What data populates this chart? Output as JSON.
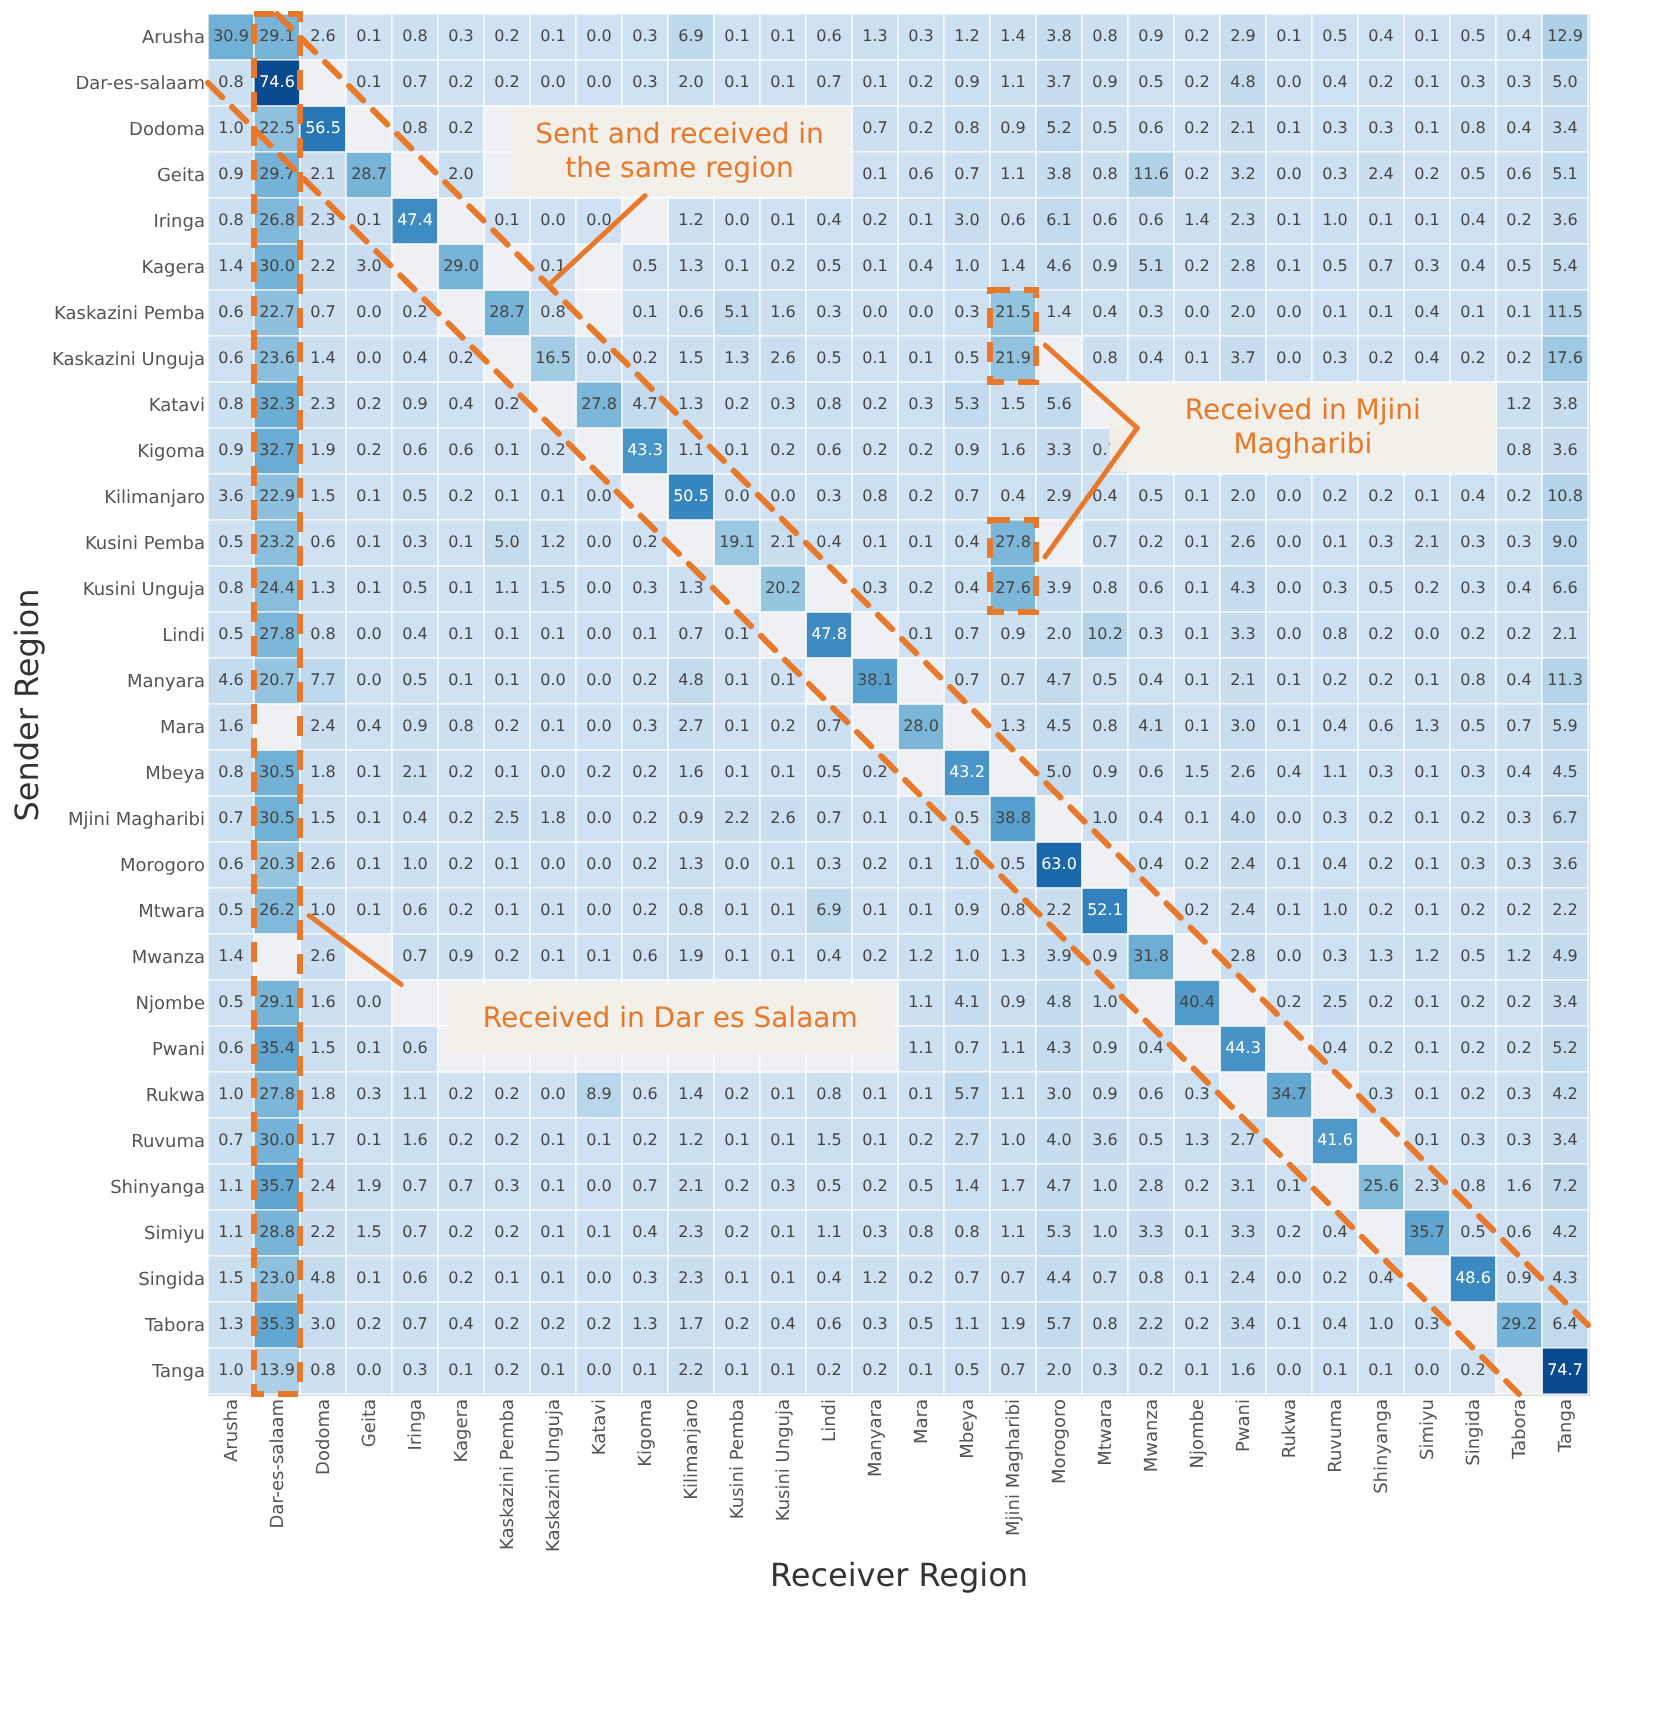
{
  "chart_data": {
    "type": "heatmap",
    "xlabel": "Receiver Region",
    "ylabel": "Sender Region",
    "data_labels": true,
    "categories": [
      "Arusha",
      "Dar-es-salaam",
      "Dodoma",
      "Geita",
      "Iringa",
      "Kagera",
      "Kaskazini Pemba",
      "Kaskazini Unguja",
      "Katavi",
      "Kigoma",
      "Kilimanjaro",
      "Kusini Pemba",
      "Kusini Unguja",
      "Lindi",
      "Manyara",
      "Mara",
      "Mbeya",
      "Mjini Magharibi",
      "Morogoro",
      "Mtwara",
      "Mwanza",
      "Njombe",
      "Pwani",
      "Rukwa",
      "Ruvuma",
      "Shinyanga",
      "Simiyu",
      "Singida",
      "Tabora",
      "Tanga"
    ],
    "y_categories": [
      "Arusha",
      "Dar-es-salaam",
      "Dodoma",
      "Geita",
      "Iringa",
      "Kagera",
      "Kaskazini Pemba",
      "Kaskazini Unguja",
      "Katavi",
      "Kigoma",
      "Kilimanjaro",
      "Kusini Pemba",
      "Kusini Unguja",
      "Lindi",
      "Manyara",
      "Mara",
      "Mbeya",
      "Mjini Magharibi",
      "Morogoro",
      "Mtwara",
      "Mwanza",
      "Njombe",
      "Pwani",
      "Rukwa",
      "Ruvuma",
      "Shinyanga",
      "Simiyu",
      "Singida",
      "Tabora",
      "Tanga"
    ],
    "cells": [
      [
        30.9,
        29.1,
        2.6,
        0.1,
        0.8,
        0.3,
        0.2,
        0.1,
        0.0,
        0.3,
        6.9,
        0.1,
        0.1,
        0.6,
        1.3,
        0.3,
        1.2,
        1.4,
        3.8,
        0.8,
        0.9,
        0.2,
        2.9,
        0.1,
        0.5,
        0.4,
        0.1,
        0.5,
        0.4,
        12.9
      ],
      [
        0.8,
        74.6,
        null,
        0.1,
        0.7,
        0.2,
        0.2,
        0.0,
        0.0,
        0.3,
        2.0,
        0.1,
        0.1,
        0.7,
        0.1,
        0.2,
        0.9,
        1.1,
        3.7,
        0.9,
        0.5,
        0.2,
        4.8,
        0.0,
        0.4,
        0.2,
        0.1,
        0.3,
        0.3,
        5.0
      ],
      [
        1.0,
        22.5,
        56.5,
        null,
        0.8,
        0.2,
        null,
        null,
        null,
        null,
        null,
        null,
        null,
        null,
        0.7,
        0.2,
        0.8,
        0.9,
        5.2,
        0.5,
        0.6,
        0.2,
        2.1,
        0.1,
        0.3,
        0.3,
        0.1,
        0.8,
        0.4,
        3.4
      ],
      [
        0.9,
        29.7,
        2.1,
        28.7,
        null,
        2.0,
        null,
        null,
        null,
        null,
        null,
        null,
        null,
        null,
        0.1,
        0.6,
        0.7,
        1.1,
        3.8,
        0.8,
        11.6,
        0.2,
        3.2,
        0.0,
        0.3,
        2.4,
        0.2,
        0.5,
        0.6,
        5.1
      ],
      [
        0.8,
        26.8,
        2.3,
        0.1,
        47.4,
        null,
        0.1,
        0.0,
        0.0,
        null,
        1.2,
        0.0,
        0.1,
        0.4,
        0.2,
        0.1,
        3.0,
        0.6,
        6.1,
        0.6,
        0.6,
        1.4,
        2.3,
        0.1,
        1.0,
        0.1,
        0.1,
        0.4,
        0.2,
        3.6
      ],
      [
        1.4,
        30.0,
        2.2,
        3.0,
        null,
        29.0,
        null,
        0.1,
        null,
        0.5,
        1.3,
        0.1,
        0.2,
        0.5,
        0.1,
        0.4,
        1.0,
        1.4,
        4.6,
        0.9,
        5.1,
        0.2,
        2.8,
        0.1,
        0.5,
        0.7,
        0.3,
        0.4,
        0.5,
        5.4
      ],
      [
        0.6,
        22.7,
        0.7,
        0.0,
        0.2,
        null,
        28.7,
        0.8,
        null,
        0.1,
        0.6,
        5.1,
        1.6,
        0.3,
        0.0,
        0.0,
        0.3,
        21.5,
        1.4,
        0.4,
        0.3,
        0.0,
        2.0,
        0.0,
        0.1,
        0.1,
        0.4,
        0.1,
        0.1,
        11.5
      ],
      [
        0.6,
        23.6,
        1.4,
        0.0,
        0.4,
        0.2,
        null,
        16.5,
        0.0,
        0.2,
        1.5,
        1.3,
        2.6,
        0.5,
        0.1,
        0.1,
        0.5,
        21.9,
        null,
        0.8,
        0.4,
        0.1,
        3.7,
        0.0,
        0.3,
        0.2,
        0.4,
        0.2,
        0.2,
        17.6
      ],
      [
        0.8,
        32.3,
        2.3,
        0.2,
        0.9,
        0.4,
        0.2,
        null,
        27.8,
        4.7,
        1.3,
        0.2,
        0.3,
        0.8,
        0.2,
        0.3,
        5.3,
        1.5,
        5.6,
        null,
        null,
        null,
        null,
        null,
        null,
        null,
        null,
        null,
        1.2,
        3.8
      ],
      [
        0.9,
        32.7,
        1.9,
        0.2,
        0.6,
        0.6,
        0.1,
        0.2,
        null,
        43.3,
        1.1,
        0.1,
        0.2,
        0.6,
        0.2,
        0.2,
        0.9,
        1.6,
        3.3,
        0.7,
        null,
        null,
        null,
        null,
        null,
        null,
        null,
        null,
        0.8,
        3.6
      ],
      [
        3.6,
        22.9,
        1.5,
        0.1,
        0.5,
        0.2,
        0.1,
        0.1,
        0.0,
        null,
        50.5,
        0.0,
        0.0,
        0.3,
        0.8,
        0.2,
        0.7,
        0.4,
        2.9,
        0.4,
        0.5,
        0.1,
        2.0,
        0.0,
        0.2,
        0.2,
        0.1,
        0.4,
        0.2,
        10.8
      ],
      [
        0.5,
        23.2,
        0.6,
        0.1,
        0.3,
        0.1,
        5.0,
        1.2,
        0.0,
        0.2,
        null,
        19.1,
        2.1,
        0.4,
        0.1,
        0.1,
        0.4,
        27.8,
        null,
        0.7,
        0.2,
        0.1,
        2.6,
        0.0,
        0.1,
        0.3,
        2.1,
        0.3,
        0.3,
        9.0
      ],
      [
        0.8,
        24.4,
        1.3,
        0.1,
        0.5,
        0.1,
        1.1,
        1.5,
        0.0,
        0.3,
        1.3,
        null,
        20.2,
        null,
        0.3,
        0.2,
        0.4,
        27.6,
        3.9,
        0.8,
        0.6,
        0.1,
        4.3,
        0.0,
        0.3,
        0.5,
        0.2,
        0.3,
        0.4,
        6.6
      ],
      [
        0.5,
        27.8,
        0.8,
        0.0,
        0.4,
        0.1,
        0.1,
        0.1,
        0.0,
        0.1,
        0.7,
        0.1,
        null,
        47.8,
        null,
        0.1,
        0.7,
        0.9,
        2.0,
        10.2,
        0.3,
        0.1,
        3.3,
        0.0,
        0.8,
        0.2,
        0.0,
        0.2,
        0.2,
        2.1
      ],
      [
        4.6,
        20.7,
        7.7,
        0.0,
        0.5,
        0.1,
        0.1,
        0.0,
        0.0,
        0.2,
        4.8,
        0.1,
        0.1,
        null,
        38.1,
        null,
        0.7,
        0.7,
        4.7,
        0.5,
        0.4,
        0.1,
        2.1,
        0.1,
        0.2,
        0.2,
        0.1,
        0.8,
        0.4,
        11.3
      ],
      [
        1.6,
        null,
        2.4,
        0.4,
        0.9,
        0.8,
        0.2,
        0.1,
        0.0,
        0.3,
        2.7,
        0.1,
        0.2,
        0.7,
        null,
        28.0,
        null,
        1.3,
        4.5,
        0.8,
        4.1,
        0.1,
        3.0,
        0.1,
        0.4,
        0.6,
        1.3,
        0.5,
        0.7,
        5.9
      ],
      [
        0.8,
        30.5,
        1.8,
        0.1,
        2.1,
        0.2,
        0.1,
        0.0,
        0.2,
        0.2,
        1.6,
        0.1,
        0.1,
        0.5,
        0.2,
        null,
        43.2,
        null,
        5.0,
        0.9,
        0.6,
        1.5,
        2.6,
        0.4,
        1.1,
        0.3,
        0.1,
        0.3,
        0.4,
        4.5
      ],
      [
        0.7,
        30.5,
        1.5,
        0.1,
        0.4,
        0.2,
        2.5,
        1.8,
        0.0,
        0.2,
        0.9,
        2.2,
        2.6,
        0.7,
        0.1,
        0.1,
        0.5,
        38.8,
        null,
        1.0,
        0.4,
        0.1,
        4.0,
        0.0,
        0.3,
        0.2,
        0.1,
        0.2,
        0.3,
        6.7
      ],
      [
        0.6,
        20.3,
        2.6,
        0.1,
        1.0,
        0.2,
        0.1,
        0.0,
        0.0,
        0.2,
        1.3,
        0.0,
        0.1,
        0.3,
        0.2,
        0.1,
        1.0,
        0.5,
        63.0,
        null,
        0.4,
        0.2,
        2.4,
        0.1,
        0.4,
        0.2,
        0.1,
        0.3,
        0.3,
        3.6
      ],
      [
        0.5,
        26.2,
        1.0,
        0.1,
        0.6,
        0.2,
        0.1,
        0.1,
        0.0,
        0.2,
        0.8,
        0.1,
        0.1,
        6.9,
        0.1,
        0.1,
        0.9,
        0.8,
        2.2,
        52.1,
        null,
        0.2,
        2.4,
        0.1,
        1.0,
        0.2,
        0.1,
        0.2,
        0.2,
        2.2
      ],
      [
        1.4,
        null,
        2.6,
        null,
        0.7,
        0.9,
        0.2,
        0.1,
        0.1,
        0.6,
        1.9,
        0.1,
        0.1,
        0.4,
        0.2,
        1.2,
        1.0,
        1.3,
        3.9,
        0.9,
        31.8,
        null,
        2.8,
        0.0,
        0.3,
        1.3,
        1.2,
        0.5,
        1.2,
        4.9
      ],
      [
        0.5,
        29.1,
        1.6,
        0.0,
        null,
        null,
        null,
        null,
        null,
        null,
        null,
        null,
        null,
        null,
        null,
        1.1,
        4.1,
        0.9,
        4.8,
        1.0,
        null,
        40.4,
        null,
        0.2,
        2.5,
        0.2,
        0.1,
        0.2,
        0.2,
        3.4
      ],
      [
        0.6,
        35.4,
        1.5,
        0.1,
        0.6,
        null,
        null,
        null,
        null,
        null,
        null,
        null,
        null,
        null,
        null,
        1.1,
        0.7,
        1.1,
        4.3,
        0.9,
        0.4,
        null,
        44.3,
        null,
        0.4,
        0.2,
        0.1,
        0.2,
        0.2,
        5.2
      ],
      [
        1.0,
        27.8,
        1.8,
        0.3,
        1.1,
        0.2,
        0.2,
        0.0,
        8.9,
        0.6,
        1.4,
        0.2,
        0.1,
        0.8,
        0.1,
        0.1,
        5.7,
        1.1,
        3.0,
        0.9,
        0.6,
        0.3,
        null,
        34.7,
        null,
        0.3,
        0.1,
        0.2,
        0.3,
        4.2
      ],
      [
        0.7,
        30.0,
        1.7,
        0.1,
        1.6,
        0.2,
        0.2,
        0.1,
        0.1,
        0.2,
        1.2,
        0.1,
        0.1,
        1.5,
        0.1,
        0.2,
        2.7,
        1.0,
        4.0,
        3.6,
        0.5,
        1.3,
        2.7,
        null,
        41.6,
        null,
        0.1,
        0.3,
        0.3,
        3.4
      ],
      [
        1.1,
        35.7,
        2.4,
        1.9,
        0.7,
        0.7,
        0.3,
        0.1,
        0.0,
        0.7,
        2.1,
        0.2,
        0.3,
        0.5,
        0.2,
        0.5,
        1.4,
        1.7,
        4.7,
        1.0,
        2.8,
        0.2,
        3.1,
        0.1,
        null,
        25.6,
        2.3,
        0.8,
        1.6,
        7.2
      ],
      [
        1.1,
        28.8,
        2.2,
        1.5,
        0.7,
        0.2,
        0.2,
        0.1,
        0.1,
        0.4,
        2.3,
        0.2,
        0.1,
        1.1,
        0.3,
        0.8,
        0.8,
        1.1,
        5.3,
        1.0,
        3.3,
        0.1,
        3.3,
        0.2,
        0.4,
        null,
        35.7,
        0.5,
        0.6,
        4.2
      ],
      [
        1.5,
        23.0,
        4.8,
        0.1,
        0.6,
        0.2,
        0.1,
        0.1,
        0.0,
        0.3,
        2.3,
        0.1,
        0.1,
        0.4,
        1.2,
        0.2,
        0.7,
        0.7,
        4.4,
        0.7,
        0.8,
        0.1,
        2.4,
        0.0,
        0.2,
        0.4,
        null,
        48.6,
        0.9,
        4.3
      ],
      [
        1.3,
        35.3,
        3.0,
        0.2,
        0.7,
        0.4,
        0.2,
        0.2,
        0.2,
        1.3,
        1.7,
        0.2,
        0.4,
        0.6,
        0.3,
        0.5,
        1.1,
        1.9,
        5.7,
        0.8,
        2.2,
        0.2,
        3.4,
        0.1,
        0.4,
        1.0,
        0.3,
        null,
        29.2,
        6.4
      ],
      [
        1.0,
        13.9,
        0.8,
        0.0,
        0.3,
        0.1,
        0.2,
        0.1,
        0.0,
        0.1,
        2.2,
        0.1,
        0.1,
        0.2,
        0.2,
        0.1,
        0.5,
        0.7,
        2.0,
        0.3,
        0.2,
        0.1,
        1.6,
        0.0,
        0.1,
        0.1,
        0.0,
        0.2,
        null,
        74.7
      ]
    ],
    "cell_labels": [
      [
        "30.9",
        "29.1",
        "2.6",
        "0.1",
        "0.8",
        "0.3",
        "0.2",
        "0.1",
        "0.0",
        "0.3",
        "6.9",
        "0.1",
        "0.1",
        "0.6",
        "1.3",
        "0.3",
        "1.2",
        "1.4",
        "3.8",
        "0.8",
        "0.9",
        "0.2",
        "2.9",
        "0.1",
        "0.5",
        "0.4",
        "0.1",
        "0.5",
        "0.4",
        "12.9"
      ],
      [
        "0.8",
        "74.6",
        null,
        "0.1",
        "0.7",
        "0.2",
        "0.2",
        "0.0",
        "0.0",
        "0.3",
        "2.0",
        "0.1",
        "0.1",
        "0.7",
        "0.1",
        "0.2",
        "0.9",
        "1.1",
        "3.7",
        "0.9",
        "0.5",
        "0.2",
        "4.8",
        "0.0",
        "0.4",
        "0.2",
        "0.1",
        "0.3",
        "0.3",
        "5.0"
      ],
      [
        "1.0",
        "22.5",
        "56.5",
        null,
        "0.8",
        "0.2",
        null,
        null,
        null,
        null,
        null,
        null,
        null,
        null,
        "0.7",
        "0.2",
        "0.8",
        "0.9",
        "5.2",
        "0.5",
        "0.6",
        "0.2",
        "2.1",
        "0.1",
        "0.3",
        "0.3",
        "0.1",
        "0.8",
        "0.4",
        "3.4"
      ],
      [
        "0.9",
        "29.7",
        "2.1",
        "28.7",
        null,
        "2.0",
        null,
        null,
        null,
        null,
        null,
        null,
        null,
        null,
        "0.1",
        "0.6",
        "0.7",
        "1.1",
        "3.8",
        "0.8",
        "11.6",
        "0.2",
        "3.2",
        "0.0",
        "0.3",
        "2.4",
        "0.2",
        "0.5",
        "0.6",
        "5.1"
      ],
      [
        "0.8",
        "26.8",
        "2.3",
        "0.1",
        "47.4",
        null,
        "0.1",
        "0.0",
        "0.0",
        null,
        "1.2",
        "0.0",
        "0.1",
        "0.4",
        "0.2",
        "0.1",
        "3.0",
        "0.6",
        "6.1",
        "0.6",
        "0.6",
        "1.4",
        "2.3",
        "0.1",
        "1.0",
        "0.1",
        "0.1",
        "0.4",
        "0.2",
        "3.6"
      ],
      [
        "1.4",
        "30.0",
        "2.2",
        "3.0",
        null,
        "29.0",
        null,
        "0.1",
        null,
        "0.5",
        "1.3",
        "0.1",
        "0.2",
        "0.5",
        "0.1",
        "0.4",
        "1.0",
        "1.4",
        "4.6",
        "0.9",
        "5.1",
        "0.2",
        "2.8",
        "0.1",
        "0.5",
        "0.7",
        "0.3",
        "0.4",
        "0.5",
        "5.4"
      ],
      [
        "0.6",
        "22.7",
        "0.7",
        "0.0",
        "0.2",
        null,
        "28.7",
        "0.8",
        null,
        "0.1",
        "0.6",
        "5.1",
        "1.6",
        "0.3",
        "0.0",
        "0.0",
        "0.3",
        "21.5",
        "1.4",
        "0.4",
        "0.3",
        "0.0",
        "2.0",
        "0.0",
        "0.1",
        "0.1",
        "0.4",
        "0.1",
        "0.1",
        "11.5"
      ],
      [
        "0.6",
        "23.6",
        "1.4",
        "0.0",
        "0.4",
        "0.2",
        null,
        "16.5",
        "0.0",
        "0.2",
        "1.5",
        "1.3",
        "2.6",
        "0.5",
        "0.1",
        "0.1",
        "0.5",
        "21.9",
        null,
        "0.8",
        "0.4",
        "0.1",
        "3.7",
        "0.0",
        "0.3",
        "0.2",
        "0.4",
        "0.2",
        "0.2",
        "17.6"
      ],
      [
        "0.8",
        "32.3",
        "2.3",
        "0.2",
        "0.9",
        "0.4",
        "0.2",
        null,
        "27.8",
        "4.7",
        "1.3",
        "0.2",
        "0.3",
        "0.8",
        "0.2",
        "0.3",
        "5.3",
        "1.5",
        "5.6",
        null,
        null,
        null,
        null,
        null,
        null,
        null,
        null,
        null,
        "1.2",
        "3.8"
      ],
      [
        "0.9",
        "32.7",
        "1.9",
        "0.2",
        "0.6",
        "0.6",
        "0.1",
        "0.2",
        null,
        "43.3",
        "1.1",
        "0.1",
        "0.2",
        "0.6",
        "0.2",
        "0.2",
        "0.9",
        "1.6",
        "3.3",
        "0.7",
        null,
        null,
        null,
        null,
        null,
        null,
        null,
        null,
        "0.8",
        "3.6"
      ],
      [
        "3.6",
        "22.9",
        "1.5",
        "0.1",
        "0.5",
        "0.2",
        "0.1",
        "0.1",
        "0.0",
        null,
        "50.5",
        "0.0",
        "0.0",
        "0.3",
        "0.8",
        "0.2",
        "0.7",
        "0.4",
        "2.9",
        "0.4",
        "0.5",
        "0.1",
        "2.0",
        "0.0",
        "0.2",
        "0.2",
        "0.1",
        "0.4",
        "0.2",
        "10.8"
      ],
      [
        "0.5",
        "23.2",
        "0.6",
        "0.1",
        "0.3",
        "0.1",
        "5.0",
        "1.2",
        "0.0",
        "0.2",
        null,
        "19.1",
        "2.1",
        "0.4",
        "0.1",
        "0.1",
        "0.4",
        "27.8",
        null,
        "0.7",
        "0.2",
        "0.1",
        "2.6",
        "0.0",
        "0.1",
        "0.3",
        "2.1",
        "0.3",
        "0.3",
        "9.0"
      ],
      [
        "0.8",
        "24.4",
        "1.3",
        "0.1",
        "0.5",
        "0.1",
        "1.1",
        "1.5",
        "0.0",
        "0.3",
        "1.3",
        null,
        "20.2",
        null,
        "0.3",
        "0.2",
        "0.4",
        "27.6",
        "3.9",
        "0.8",
        "0.6",
        "0.1",
        "4.3",
        "0.0",
        "0.3",
        "0.5",
        "0.2",
        "0.3",
        "0.4",
        "6.6"
      ],
      [
        "0.5",
        "27.8",
        "0.8",
        "0.0",
        "0.4",
        "0.1",
        "0.1",
        "0.1",
        "0.0",
        "0.1",
        "0.7",
        "0.1",
        null,
        "47.8",
        null,
        "0.1",
        "0.7",
        "0.9",
        "2.0",
        "10.2",
        "0.3",
        "0.1",
        "3.3",
        "0.0",
        "0.8",
        "0.2",
        "0.0",
        "0.2",
        "0.2",
        "2.1"
      ],
      [
        "4.6",
        "20.7",
        "7.7",
        "0.0",
        "0.5",
        "0.1",
        "0.1",
        "0.0",
        "0.0",
        "0.2",
        "4.8",
        "0.1",
        "0.1",
        null,
        "38.1",
        null,
        "0.7",
        "0.7",
        "4.7",
        "0.5",
        "0.4",
        "0.1",
        "2.1",
        "0.1",
        "0.2",
        "0.2",
        "0.1",
        "0.8",
        "0.4",
        "11.3"
      ],
      [
        "1.6",
        null,
        "2.4",
        "0.4",
        "0.9",
        "0.8",
        "0.2",
        "0.1",
        "0.0",
        "0.3",
        "2.7",
        "0.1",
        "0.2",
        "0.7",
        null,
        "28.0",
        null,
        "1.3",
        "4.5",
        "0.8",
        "4.1",
        "0.1",
        "3.0",
        "0.1",
        "0.4",
        "0.6",
        "1.3",
        "0.5",
        "0.7",
        "5.9"
      ],
      [
        "0.8",
        "30.5",
        "1.8",
        "0.1",
        "2.1",
        "0.2",
        "0.1",
        "0.0",
        "0.2",
        "0.2",
        "1.6",
        "0.1",
        "0.1",
        "0.5",
        "0.2",
        null,
        "43.2",
        null,
        "5.0",
        "0.9",
        "0.6",
        "1.5",
        "2.6",
        "0.4",
        "1.1",
        "0.3",
        "0.1",
        "0.3",
        "0.4",
        "4.5"
      ],
      [
        "0.7",
        "30.5",
        "1.5",
        "0.1",
        "0.4",
        "0.2",
        "2.5",
        "1.8",
        "0.0",
        "0.2",
        "0.9",
        "2.2",
        "2.6",
        "0.7",
        "0.1",
        "0.1",
        "0.5",
        "38.8",
        null,
        "1.0",
        "0.4",
        "0.1",
        "4.0",
        "0.0",
        "0.3",
        "0.2",
        "0.1",
        "0.2",
        "0.3",
        "6.7"
      ],
      [
        "0.6",
        "20.3",
        "2.6",
        "0.1",
        "1.0",
        "0.2",
        "0.1",
        "0.0",
        "0.0",
        "0.2",
        "1.3",
        "0.0",
        "0.1",
        "0.3",
        "0.2",
        "0.1",
        "1.0",
        "0.5",
        "63.0",
        null,
        "0.4",
        "0.2",
        "2.4",
        "0.1",
        "0.4",
        "0.2",
        "0.1",
        "0.3",
        "0.3",
        "3.6"
      ],
      [
        "0.5",
        "26.2",
        "1.0",
        "0.1",
        "0.6",
        "0.2",
        "0.1",
        "0.1",
        "0.0",
        "0.2",
        "0.8",
        "0.1",
        "0.1",
        "6.9",
        "0.1",
        "0.1",
        "0.9",
        "0.8",
        "2.2",
        "52.1",
        null,
        "0.2",
        "2.4",
        "0.1",
        "1.0",
        "0.2",
        "0.1",
        "0.2",
        "0.2",
        "2.2"
      ],
      [
        "1.4",
        null,
        "2.6",
        null,
        "0.7",
        "0.9",
        "0.2",
        "0.1",
        "0.1",
        "0.6",
        "1.9",
        "0.1",
        "0.1",
        "0.4",
        "0.2",
        "1.2",
        "1.0",
        "1.3",
        "3.9",
        "0.9",
        "31.8",
        null,
        "2.8",
        "0.0",
        "0.3",
        "1.3",
        "1.2",
        "0.5",
        "1.2",
        "4.9"
      ],
      [
        "0.5",
        "29.1",
        "1.6",
        "0.0",
        null,
        null,
        null,
        null,
        null,
        null,
        null,
        null,
        null,
        null,
        null,
        "1.1",
        "4.1",
        "0.9",
        "4.8",
        "1.0",
        null,
        "40.4",
        null,
        "0.2",
        "2.5",
        "0.2",
        "0.1",
        "0.2",
        "0.2",
        "3.4"
      ],
      [
        "0.6",
        "35.4",
        "1.5",
        "0.1",
        "0.6",
        null,
        null,
        null,
        null,
        null,
        null,
        null,
        null,
        null,
        null,
        "1.1",
        "0.7",
        "1.1",
        "4.3",
        "0.9",
        "0.4",
        null,
        "44.3",
        null,
        "0.4",
        "0.2",
        "0.1",
        "0.2",
        "0.2",
        "5.2"
      ],
      [
        "1.0",
        "27.8",
        "1.8",
        "0.3",
        "1.1",
        "0.2",
        "0.2",
        "0.0",
        "8.9",
        "0.6",
        "1.4",
        "0.2",
        "0.1",
        "0.8",
        "0.1",
        "0.1",
        "5.7",
        "1.1",
        "3.0",
        "0.9",
        "0.6",
        "0.3",
        null,
        "34.7",
        null,
        "0.3",
        "0.1",
        "0.2",
        "0.3",
        "4.2"
      ],
      [
        "0.7",
        "30.0",
        "1.7",
        "0.1",
        "1.6",
        "0.2",
        "0.2",
        "0.1",
        "0.1",
        "0.2",
        "1.2",
        "0.1",
        "0.1",
        "1.5",
        "0.1",
        "0.2",
        "2.7",
        "1.0",
        "4.0",
        "3.6",
        "0.5",
        "1.3",
        "2.7",
        null,
        "41.6",
        null,
        "0.1",
        "0.3",
        "0.3",
        "3.4"
      ],
      [
        "1.1",
        "35.7",
        "2.4",
        "1.9",
        "0.7",
        "0.7",
        "0.3",
        "0.1",
        "0.0",
        "0.7",
        "2.1",
        "0.2",
        "0.3",
        "0.5",
        "0.2",
        "0.5",
        "1.4",
        "1.7",
        "4.7",
        "1.0",
        "2.8",
        "0.2",
        "3.1",
        "0.1",
        null,
        "25.6",
        "2.3",
        "0.8",
        "1.6",
        "7.2"
      ],
      [
        "1.1",
        "28.8",
        "2.2",
        "1.5",
        "0.7",
        "0.2",
        "0.2",
        "0.1",
        "0.1",
        "0.4",
        "2.3",
        "0.2",
        "0.1",
        "1.1",
        "0.3",
        "0.8",
        "0.8",
        "1.1",
        "5.3",
        "1.0",
        "3.3",
        "0.1",
        "3.3",
        "0.2",
        "0.4",
        null,
        "35.7",
        "0.5",
        "0.6",
        "4.2"
      ],
      [
        "1.5",
        "23.0",
        "4.8",
        "0.1",
        "0.6",
        "0.2",
        "0.1",
        "0.1",
        "0.0",
        "0.3",
        "2.3",
        "0.1",
        "0.1",
        "0.4",
        "1.2",
        "0.2",
        "0.7",
        "0.7",
        "4.4",
        "0.7",
        "0.8",
        "0.1",
        "2.4",
        "0.0",
        "0.2",
        "0.4",
        null,
        "48.6",
        "0.9",
        "4.3"
      ],
      [
        "1.3",
        "35.3",
        "3.0",
        "0.2",
        "0.7",
        "0.4",
        "0.2",
        "0.2",
        "0.2",
        "1.3",
        "1.7",
        "0.2",
        "0.4",
        "0.6",
        "0.3",
        "0.5",
        "1.1",
        "1.9",
        "5.7",
        "0.8",
        "2.2",
        "0.2",
        "3.4",
        "0.1",
        "0.4",
        "1.0",
        "0.3",
        null,
        "29.2",
        "6.4"
      ],
      [
        "1.0",
        "13.9",
        "0.8",
        "0.0",
        "0.3",
        "0.1",
        "0.2",
        "0.1",
        "0.0",
        "0.1",
        "2.2",
        "0.1",
        "0.1",
        "0.2",
        "0.2",
        "0.1",
        "0.5",
        "0.7",
        "2.0",
        "0.3",
        "0.2",
        "0.1",
        "1.6",
        "0.0",
        "0.1",
        "0.1",
        "0.0",
        "0.2",
        null,
        "74.7"
      ]
    ],
    "annotations": [
      "Sent and received in the same region",
      "Received in Mjini Magharibi",
      "Received in Dar es Salaam"
    ]
  }
}
